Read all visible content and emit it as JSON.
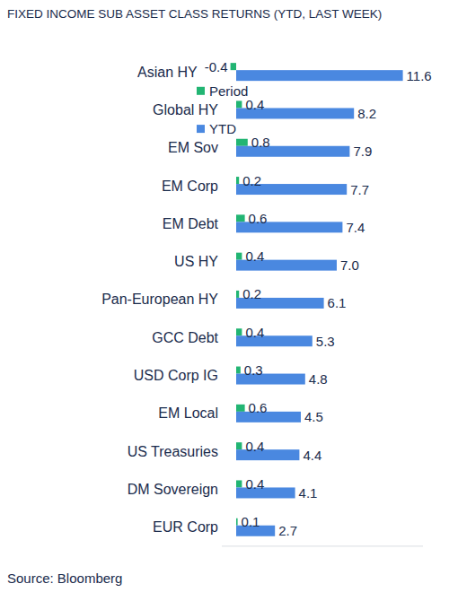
{
  "chart_data": {
    "type": "bar",
    "orientation": "horizontal",
    "title": "FIXED INCOME SUB ASSET CLASS RETURNS (YTD, LAST WEEK)",
    "source": "Source: Bloomberg",
    "categories": [
      "Asian HY",
      "Global HY",
      "EM Sov",
      "EM Corp",
      "EM Debt",
      "US HY",
      "Pan-European HY",
      "GCC Debt",
      "USD Corp IG",
      "EM Local",
      "US Treasuries",
      "DM Sovereign",
      "EUR Corp"
    ],
    "series": [
      {
        "name": "Period",
        "color": "#22b573",
        "values": [
          -0.4,
          0.4,
          0.8,
          0.2,
          0.6,
          0.4,
          0.2,
          0.4,
          0.3,
          0.6,
          0.4,
          0.4,
          0.1
        ]
      },
      {
        "name": "YTD",
        "color": "#4a88e0",
        "values": [
          11.6,
          8.2,
          7.9,
          7.7,
          7.4,
          7.0,
          6.1,
          5.3,
          4.8,
          4.5,
          4.4,
          4.1,
          2.7
        ],
        "value_labels": [
          "11.6",
          "8.2",
          "7.9",
          "7.7",
          "7.4",
          "7.0",
          "6.1",
          "5.3",
          "4.8",
          "4.5",
          "4.4",
          "4.1",
          "2.7"
        ]
      }
    ],
    "ylim": [
      -1,
      13
    ],
    "data_labels": true,
    "tick_labels": "x",
    "grid": false,
    "legend": "top"
  }
}
